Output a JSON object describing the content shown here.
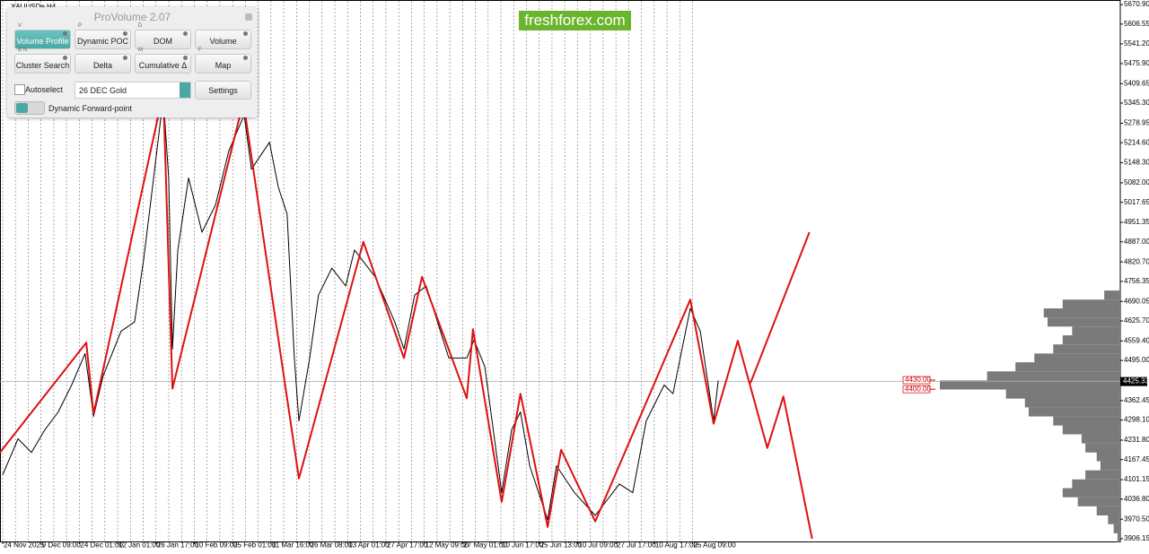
{
  "window": {
    "symbol": "XAUUSDe,H4",
    "logo": "freshforex.com"
  },
  "panel": {
    "title": "ProVolume 2.07",
    "buttons": [
      {
        "label": "Volume Profile",
        "key": "V"
      },
      {
        "label": "Dynamic POC",
        "key": "P"
      },
      {
        "label": "DOM",
        "key": "D"
      },
      {
        "label": "Volume"
      },
      {
        "label": "Cluster Search",
        "key": "B N"
      },
      {
        "label": "Delta"
      },
      {
        "label": "Cumulative Δ",
        "key": "M"
      },
      {
        "label": "Map",
        "key": "F"
      }
    ],
    "autoselect": "Autoselect",
    "instrument": "26 DEC Gold",
    "settings": "Settings",
    "forward_point": "Dynamic Forward-point"
  },
  "chart_data": {
    "type": "line",
    "categories": [
      "24 Nov 2025",
      "9 Dec 09:00",
      "24 Dec 01:00",
      "12 Jan 01:00",
      "26 Jan 17:00",
      "10 Feb 09:00",
      "25 Feb 01:00",
      "11 Mar 16:00",
      "26 Mar 08:00",
      "13 Apr 01:00",
      "27 Apr 17:00",
      "12 May 09:00",
      "27 May 01:00",
      "10 Jun 17:00",
      "25 Jun 13:00",
      "10 Jul 09:00",
      "27 Jul 17:00",
      "10 Aug 17:00",
      "25 Aug 09:00"
    ],
    "xlim": [
      -0.07,
      29.16
    ],
    "ylim": [
      3897,
      5686
    ],
    "yticks": [
      {
        "value": 5670.9,
        "label": "5670.90"
      },
      {
        "value": 5606.55,
        "label": "5606.55"
      },
      {
        "value": 5541.2,
        "label": "5541.20"
      },
      {
        "value": 5475.9,
        "label": "5475.90"
      },
      {
        "value": 5409.65,
        "label": "5409.65"
      },
      {
        "value": 5345.3,
        "label": "5345.30"
      },
      {
        "value": 5278.95,
        "label": "5278.95"
      },
      {
        "value": 5214.6,
        "label": "5214.60"
      },
      {
        "value": 5148.3,
        "label": "5148.30"
      },
      {
        "value": 5082,
        "label": "5082.00"
      },
      {
        "value": 5017.65,
        "label": "5017.65"
      },
      {
        "value": 4951.35,
        "label": "4951.35"
      },
      {
        "value": 4887,
        "label": "4887.00"
      },
      {
        "value": 4820.7,
        "label": "4820.70"
      },
      {
        "value": 4756.35,
        "label": "4756.35"
      },
      {
        "value": 4690.05,
        "label": "4690.05"
      },
      {
        "value": 4625.7,
        "label": "4625.70"
      },
      {
        "value": 4559.4,
        "label": "4559.40"
      },
      {
        "value": 4495,
        "label": "4495.00"
      },
      {
        "value": 4362.45,
        "label": "4362.45"
      },
      {
        "value": 4298.1,
        "label": "4298.10"
      },
      {
        "value": 4231.8,
        "label": "4231.80"
      },
      {
        "value": 4167.45,
        "label": "4167.45"
      },
      {
        "value": 4101.15,
        "label": "4101.15"
      },
      {
        "value": 4036.8,
        "label": "4036.80"
      },
      {
        "value": 3970.5,
        "label": "3970.50"
      },
      {
        "value": 3906.15,
        "label": "3906.15"
      }
    ],
    "series": [
      {
        "color": "#000000",
        "width": 1,
        "x": [
          0,
          0.4,
          0.75,
          1.1,
          1.45,
          1.8,
          2.15,
          2.37,
          2.62,
          3.09,
          3.44,
          3.68,
          3.91,
          4.19,
          4.33,
          4.43,
          4.57,
          4.85,
          5.2,
          5.55,
          5.9,
          6.3,
          6.49,
          6.96,
          7.19,
          7.42,
          7.61,
          7.73,
          8.01,
          8.24,
          8.59,
          8.95,
          9.18,
          9.72,
          10.23,
          10.47,
          10.75,
          11.05,
          11.64,
          12.11,
          12.3,
          12.58,
          13.02,
          13.28,
          13.51,
          13.75,
          14.22,
          14.45,
          14.92,
          15.46,
          16.09,
          16.44,
          16.79,
          17.26,
          17.49,
          17.94,
          18.2,
          18.55,
          18.67
        ],
        "values": [
          4117,
          4236,
          4191,
          4266,
          4325,
          4414,
          4518,
          4310,
          4444,
          4592,
          4622,
          4830,
          5068,
          5365,
          5098,
          4533,
          4860,
          5098,
          4919,
          5008,
          5187,
          5306,
          5127,
          5216,
          5068,
          4979,
          4503,
          4295,
          4503,
          4711,
          4800,
          4741,
          4860,
          4771,
          4622,
          4533,
          4711,
          4741,
          4503,
          4503,
          4563,
          4474,
          4058,
          4266,
          4325,
          4147,
          3969,
          4147,
          4058,
          3983,
          4087,
          4058,
          4295,
          4414,
          4385,
          4667,
          4592,
          4295,
          4429
        ]
      },
      {
        "color": "#dd1111",
        "width": 2,
        "x": [
          -0.07,
          2.18,
          2.37,
          4.19,
          4.43,
          6.28,
          7.73,
          9.41,
          10.47,
          10.94,
          12.11,
          12.27,
          13.02,
          13.51,
          14.22,
          14.57,
          15.46,
          17.94,
          18.55,
          19.18,
          19.95,
          20.37,
          21.12
        ],
        "values": [
          4191,
          4554,
          4319,
          5380,
          4402,
          5350,
          4105,
          4887,
          4503,
          4771,
          4370,
          4598,
          4028,
          4385,
          3945,
          4200,
          3963,
          4696,
          4286,
          4560,
          4206,
          4376,
          3906
        ]
      },
      {
        "color": "#dd1111",
        "width": 2,
        "x": [
          19.51,
          21.05
        ],
        "values": [
          4420,
          4919
        ]
      }
    ],
    "current_price": {
      "value": 4425.33,
      "label": "4425.33"
    },
    "levels": [
      {
        "value": 4430,
        "label": "4430.00"
      },
      {
        "value": 4400,
        "label": "4400.00"
      }
    ],
    "volume_profile": {
      "color": "#7a7a7a",
      "prices": [
        4711,
        4681,
        4652,
        4622,
        4592,
        4563,
        4533,
        4503,
        4474,
        4444,
        4414,
        4384,
        4355,
        4325,
        4295,
        4266,
        4236,
        4206,
        4177,
        4147,
        4117,
        4087,
        4058,
        4028,
        3998,
        3969,
        3939,
        3909
      ],
      "volumes": [
        8,
        30,
        40,
        38,
        25,
        30,
        35,
        45,
        55,
        70,
        95,
        60,
        50,
        48,
        35,
        30,
        20,
        18,
        12,
        10,
        18,
        25,
        30,
        22,
        12,
        6,
        3,
        1
      ]
    }
  }
}
